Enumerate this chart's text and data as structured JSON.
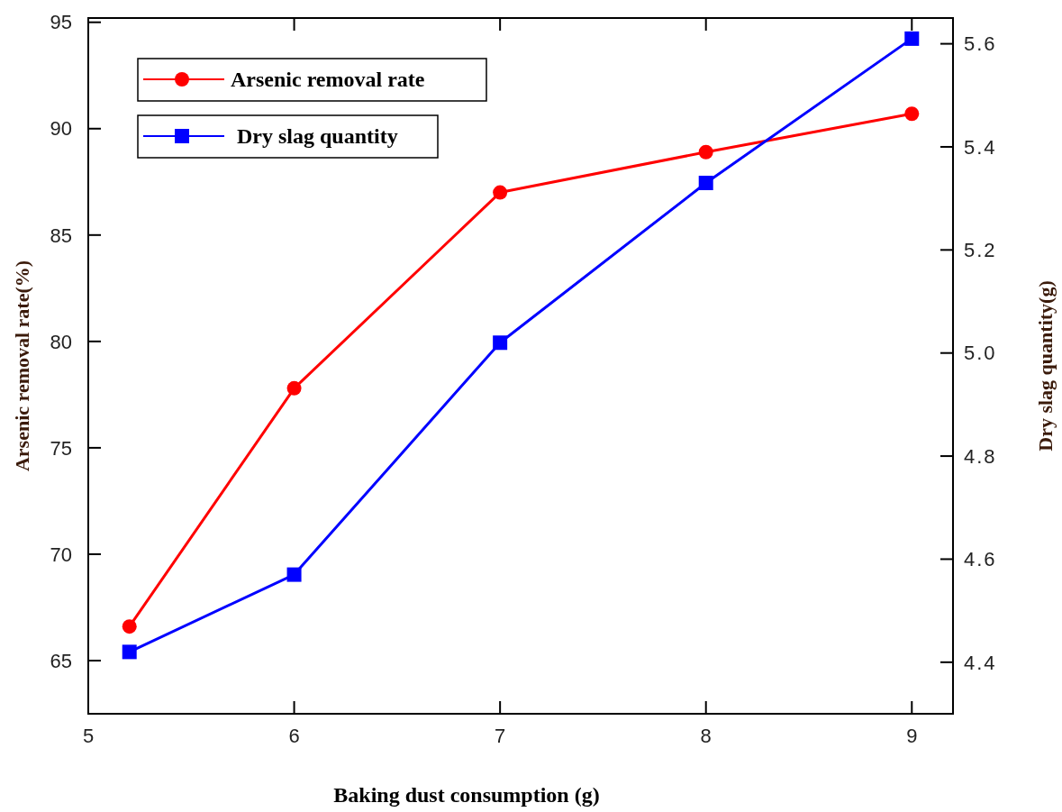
{
  "chart_data": {
    "type": "line",
    "xlabel": "Baking dust consumption (g)",
    "ylabel": "Arsenic removal rate(%)",
    "y2label": "Dry slag quantity(g)",
    "x": [
      5.2,
      6,
      7,
      8,
      9
    ],
    "xlim": [
      5,
      9.2
    ],
    "xticks": [
      5,
      6,
      7,
      8,
      9
    ],
    "ylim": [
      62.5,
      95.2
    ],
    "yticks": [
      65,
      70,
      75,
      80,
      85,
      90,
      95
    ],
    "y2lim": [
      4.3,
      5.65
    ],
    "y2ticks": [
      {
        "value": 4.4,
        "label": "4.4"
      },
      {
        "value": 4.6,
        "label": "4.6"
      },
      {
        "value": 4.8,
        "label": "4.8"
      },
      {
        "value": 5.0,
        "label": "5.0"
      },
      {
        "value": 5.2,
        "label": "5.2"
      },
      {
        "value": 5.4,
        "label": "5.4"
      },
      {
        "value": 5.6,
        "label": "5.6"
      }
    ],
    "series": [
      {
        "name": "Arsenic removal rate",
        "color": "#ff0000",
        "marker": "circle",
        "values": [
          66.6,
          77.8,
          87.0,
          88.9,
          90.7
        ]
      },
      {
        "name": "Dry slag quantity",
        "color": "#0000ff",
        "marker": "square",
        "axis": "y2",
        "values": [
          4.42,
          4.57,
          5.02,
          5.33,
          5.61
        ]
      }
    ],
    "legend": "top left",
    "grid": false
  }
}
